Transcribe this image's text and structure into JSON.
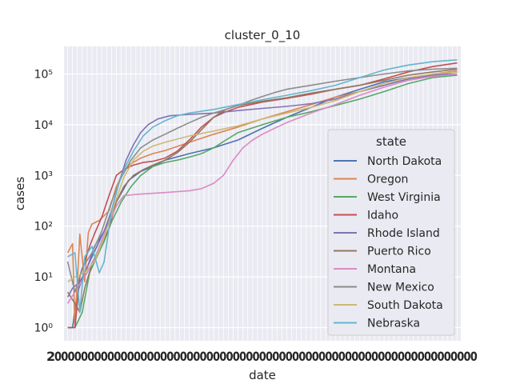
{
  "chart_data": {
    "type": "line",
    "title": "cluster_0_10",
    "xlabel": "date",
    "ylabel": "cases",
    "yscale": "log",
    "ylim": [
      0.55,
      350000
    ],
    "xlim": [
      -3,
      323
    ],
    "ytick_labels": [
      "10⁰",
      "10¹",
      "10²",
      "10³",
      "10⁴",
      "10⁵"
    ],
    "xtick_display": "overlapping illegible date labels",
    "grid": true,
    "background": "#eaeaf2",
    "legend": {
      "title": "state",
      "placement": "center-right"
    },
    "series": [
      {
        "name": "North Dakota",
        "color": "#4c72b0",
        "points": [
          [
            0,
            1
          ],
          [
            4,
            1
          ],
          [
            8,
            5
          ],
          [
            14,
            12
          ],
          [
            20,
            25
          ],
          [
            30,
            80
          ],
          [
            40,
            300
          ],
          [
            50,
            800
          ],
          [
            60,
            1200
          ],
          [
            70,
            1500
          ],
          [
            80,
            2000
          ],
          [
            100,
            2700
          ],
          [
            120,
            3500
          ],
          [
            140,
            5000
          ],
          [
            160,
            8500
          ],
          [
            180,
            14000
          ],
          [
            200,
            22000
          ],
          [
            220,
            35000
          ],
          [
            240,
            50000
          ],
          [
            260,
            70000
          ],
          [
            280,
            85000
          ],
          [
            300,
            95000
          ],
          [
            320,
            100000
          ]
        ]
      },
      {
        "name": "Oregon",
        "color": "#dd8452",
        "points": [
          [
            0,
            30
          ],
          [
            4,
            45
          ],
          [
            6,
            1
          ],
          [
            10,
            70
          ],
          [
            14,
            8
          ],
          [
            17,
            75
          ],
          [
            20,
            110
          ],
          [
            26,
            130
          ],
          [
            34,
            200
          ],
          [
            40,
            600
          ],
          [
            46,
            1200
          ],
          [
            52,
            1700
          ],
          [
            60,
            2200
          ],
          [
            70,
            2700
          ],
          [
            80,
            3100
          ],
          [
            100,
            4500
          ],
          [
            120,
            6500
          ],
          [
            140,
            9000
          ],
          [
            160,
            13000
          ],
          [
            180,
            18000
          ],
          [
            200,
            25000
          ],
          [
            220,
            35000
          ],
          [
            240,
            45000
          ],
          [
            260,
            60000
          ],
          [
            280,
            80000
          ],
          [
            300,
            100000
          ],
          [
            320,
            115000
          ]
        ]
      },
      {
        "name": "West Virginia",
        "color": "#55a868",
        "points": [
          [
            0,
            1
          ],
          [
            6,
            1
          ],
          [
            12,
            2
          ],
          [
            18,
            12
          ],
          [
            24,
            25
          ],
          [
            30,
            50
          ],
          [
            36,
            120
          ],
          [
            44,
            300
          ],
          [
            52,
            600
          ],
          [
            60,
            1000
          ],
          [
            70,
            1500
          ],
          [
            80,
            1800
          ],
          [
            90,
            2000
          ],
          [
            100,
            2300
          ],
          [
            110,
            2700
          ],
          [
            120,
            3500
          ],
          [
            130,
            5000
          ],
          [
            140,
            7000
          ],
          [
            160,
            10000
          ],
          [
            180,
            14000
          ],
          [
            200,
            18000
          ],
          [
            220,
            24000
          ],
          [
            240,
            32000
          ],
          [
            260,
            45000
          ],
          [
            280,
            65000
          ],
          [
            300,
            85000
          ],
          [
            320,
            95000
          ]
        ]
      },
      {
        "name": "Idaho",
        "color": "#c44e52",
        "points": [
          [
            0,
            1
          ],
          [
            6,
            1
          ],
          [
            10,
            10
          ],
          [
            14,
            20
          ],
          [
            18,
            40
          ],
          [
            22,
            70
          ],
          [
            28,
            150
          ],
          [
            34,
            400
          ],
          [
            40,
            1000
          ],
          [
            46,
            1300
          ],
          [
            54,
            1600
          ],
          [
            62,
            1800
          ],
          [
            70,
            1900
          ],
          [
            80,
            2200
          ],
          [
            90,
            3000
          ],
          [
            100,
            5000
          ],
          [
            110,
            9000
          ],
          [
            120,
            14000
          ],
          [
            130,
            18000
          ],
          [
            140,
            22000
          ],
          [
            160,
            28000
          ],
          [
            180,
            33000
          ],
          [
            200,
            40000
          ],
          [
            220,
            50000
          ],
          [
            240,
            60000
          ],
          [
            260,
            80000
          ],
          [
            280,
            110000
          ],
          [
            300,
            140000
          ],
          [
            320,
            165000
          ]
        ]
      },
      {
        "name": "Rhode Island",
        "color": "#8172b3",
        "points": [
          [
            0,
            4
          ],
          [
            4,
            6
          ],
          [
            10,
            8
          ],
          [
            16,
            15
          ],
          [
            22,
            40
          ],
          [
            30,
            80
          ],
          [
            36,
            200
          ],
          [
            42,
            700
          ],
          [
            48,
            2000
          ],
          [
            54,
            4000
          ],
          [
            60,
            7000
          ],
          [
            66,
            10000
          ],
          [
            74,
            13000
          ],
          [
            84,
            15000
          ],
          [
            100,
            16000
          ],
          [
            120,
            17000
          ],
          [
            140,
            19000
          ],
          [
            160,
            21000
          ],
          [
            180,
            23000
          ],
          [
            200,
            26000
          ],
          [
            220,
            32000
          ],
          [
            240,
            45000
          ],
          [
            260,
            60000
          ],
          [
            280,
            80000
          ],
          [
            300,
            95000
          ],
          [
            320,
            110000
          ]
        ]
      },
      {
        "name": "Puerto Rico",
        "color": "#937860",
        "points": [
          [
            0,
            5
          ],
          [
            6,
            3
          ],
          [
            10,
            2
          ],
          [
            14,
            6
          ],
          [
            20,
            18
          ],
          [
            28,
            45
          ],
          [
            34,
            90
          ],
          [
            40,
            300
          ],
          [
            46,
            600
          ],
          [
            54,
            1000
          ],
          [
            62,
            1300
          ],
          [
            70,
            1600
          ],
          [
            80,
            2000
          ],
          [
            90,
            2800
          ],
          [
            100,
            4500
          ],
          [
            110,
            8000
          ],
          [
            120,
            14000
          ],
          [
            130,
            20000
          ],
          [
            140,
            24000
          ],
          [
            160,
            29000
          ],
          [
            180,
            34000
          ],
          [
            200,
            42000
          ],
          [
            220,
            50000
          ],
          [
            240,
            60000
          ],
          [
            260,
            75000
          ],
          [
            280,
            95000
          ],
          [
            300,
            110000
          ],
          [
            320,
            125000
          ]
        ]
      },
      {
        "name": "Montana",
        "color": "#da8bc3",
        "points": [
          [
            0,
            3
          ],
          [
            8,
            6
          ],
          [
            16,
            12
          ],
          [
            24,
            30
          ],
          [
            32,
            90
          ],
          [
            40,
            250
          ],
          [
            46,
            400
          ],
          [
            60,
            430
          ],
          [
            80,
            460
          ],
          [
            100,
            500
          ],
          [
            110,
            550
          ],
          [
            120,
            700
          ],
          [
            128,
            1000
          ],
          [
            136,
            2000
          ],
          [
            144,
            3500
          ],
          [
            152,
            5000
          ],
          [
            160,
            6500
          ],
          [
            170,
            8500
          ],
          [
            180,
            11000
          ],
          [
            200,
            17000
          ],
          [
            220,
            25000
          ],
          [
            240,
            38000
          ],
          [
            260,
            55000
          ],
          [
            280,
            75000
          ],
          [
            300,
            90000
          ],
          [
            320,
            100000
          ]
        ]
      },
      {
        "name": "New Mexico",
        "color": "#8c8c8c",
        "points": [
          [
            0,
            20
          ],
          [
            6,
            5
          ],
          [
            12,
            15
          ],
          [
            20,
            30
          ],
          [
            28,
            80
          ],
          [
            36,
            300
          ],
          [
            44,
            900
          ],
          [
            52,
            2000
          ],
          [
            60,
            3500
          ],
          [
            70,
            5000
          ],
          [
            80,
            6500
          ],
          [
            90,
            8500
          ],
          [
            100,
            11000
          ],
          [
            110,
            14000
          ],
          [
            120,
            17000
          ],
          [
            130,
            20000
          ],
          [
            140,
            24000
          ],
          [
            150,
            30000
          ],
          [
            160,
            36000
          ],
          [
            170,
            43000
          ],
          [
            180,
            50000
          ],
          [
            200,
            60000
          ],
          [
            220,
            72000
          ],
          [
            240,
            85000
          ],
          [
            260,
            100000
          ],
          [
            280,
            115000
          ],
          [
            300,
            125000
          ],
          [
            320,
            130000
          ]
        ]
      },
      {
        "name": "South Dakota",
        "color": "#ccb974",
        "points": [
          [
            0,
            8
          ],
          [
            6,
            10
          ],
          [
            14,
            12
          ],
          [
            22,
            20
          ],
          [
            30,
            60
          ],
          [
            38,
            250
          ],
          [
            46,
            900
          ],
          [
            54,
            2000
          ],
          [
            62,
            3000
          ],
          [
            70,
            3800
          ],
          [
            80,
            4500
          ],
          [
            90,
            5200
          ],
          [
            100,
            6000
          ],
          [
            120,
            7500
          ],
          [
            140,
            9500
          ],
          [
            160,
            13000
          ],
          [
            180,
            17000
          ],
          [
            200,
            22000
          ],
          [
            220,
            30000
          ],
          [
            240,
            45000
          ],
          [
            260,
            65000
          ],
          [
            280,
            85000
          ],
          [
            300,
            100000
          ],
          [
            320,
            110000
          ]
        ]
      },
      {
        "name": "Nebraska",
        "color": "#64b5cd",
        "points": [
          [
            0,
            25
          ],
          [
            6,
            30
          ],
          [
            10,
            2
          ],
          [
            14,
            25
          ],
          [
            20,
            40
          ],
          [
            26,
            12
          ],
          [
            30,
            20
          ],
          [
            36,
            200
          ],
          [
            42,
            700
          ],
          [
            48,
            1600
          ],
          [
            54,
            3000
          ],
          [
            62,
            6000
          ],
          [
            70,
            9000
          ],
          [
            80,
            12000
          ],
          [
            90,
            15000
          ],
          [
            100,
            17000
          ],
          [
            120,
            20000
          ],
          [
            140,
            25000
          ],
          [
            160,
            31000
          ],
          [
            180,
            38000
          ],
          [
            200,
            47000
          ],
          [
            220,
            60000
          ],
          [
            240,
            85000
          ],
          [
            260,
            120000
          ],
          [
            280,
            150000
          ],
          [
            300,
            175000
          ],
          [
            320,
            190000
          ]
        ]
      }
    ]
  }
}
